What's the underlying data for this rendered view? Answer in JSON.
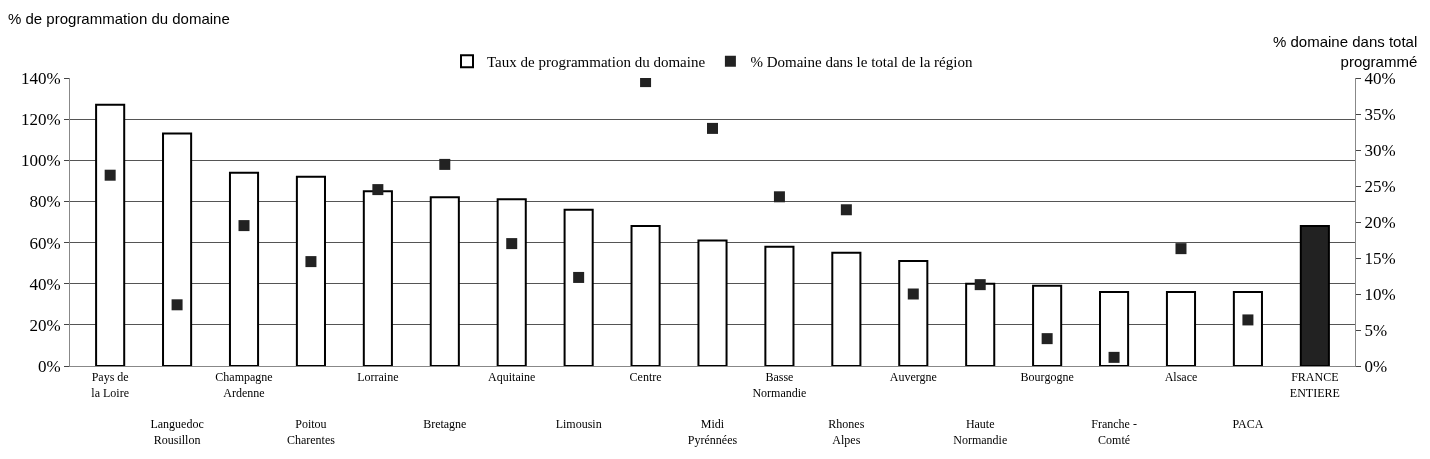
{
  "chart_data": {
    "type": "bar",
    "ylabel": "% de programmation du domaine",
    "y2label": "% domaine dans total\nprogrammé",
    "categories": [
      "Pays de\nla Loire",
      "Languedoc\nRousillon",
      "Champagne\nArdenne",
      "Poitou\nCharentes",
      "Lorraine",
      "Bretagne",
      "Aquitaine",
      "Limousin",
      "Centre",
      "Midi\nPyrénnées",
      "Basse\nNormandie",
      "Rhones\nAlpes",
      "Auvergne",
      "Haute\nNormandie",
      "Bourgogne",
      "Franche -\nComté",
      "Alsace",
      "PACA",
      "FRANCE\nENTIERE"
    ],
    "series": [
      {
        "name": "Taux de programmation du domaine",
        "color": "#ffffff",
        "colors": [
          "#ffffff",
          "#ffffff",
          "#ffffff",
          "#ffffff",
          "#ffffff",
          "#ffffff",
          "#ffffff",
          "#ffffff",
          "#ffffff",
          "#ffffff",
          "#ffffff",
          "#ffffff",
          "#ffffff",
          "#ffffff",
          "#ffffff",
          "#ffffff",
          "#ffffff",
          "#ffffff",
          "#222222"
        ],
        "values": [
          127,
          113,
          94,
          92,
          85,
          82,
          81,
          76,
          68,
          61,
          58,
          55,
          51,
          40,
          39,
          36,
          36,
          36,
          68
        ]
      },
      {
        "name": "% Domaine dans le total de la région",
        "type": "scatter",
        "axis": "y2",
        "color": "#222222",
        "marker": "square",
        "values": [
          26.5,
          8.5,
          19.5,
          14.5,
          24.5,
          28,
          17,
          12.3,
          39.5,
          33,
          23.5,
          21.7,
          10,
          11.3,
          3.8,
          1.2,
          16.3,
          6.4,
          null
        ]
      }
    ],
    "ylim": [
      0,
      140
    ],
    "yticks": [
      {
        "value": 0,
        "label": "0%"
      },
      {
        "value": 20,
        "label": "20%"
      },
      {
        "value": 40,
        "label": "40%"
      },
      {
        "value": 60,
        "label": "60%"
      },
      {
        "value": 80,
        "label": "80%"
      },
      {
        "value": 100,
        "label": "100%"
      },
      {
        "value": 120,
        "label": "120%"
      },
      {
        "value": 140,
        "label": "140%"
      }
    ],
    "y2lim": [
      0,
      40
    ],
    "y2ticks": [
      {
        "value": 0,
        "label": "0%"
      },
      {
        "value": 5,
        "label": "5%"
      },
      {
        "value": 10,
        "label": "10%"
      },
      {
        "value": 15,
        "label": "15%"
      },
      {
        "value": 20,
        "label": "20%"
      },
      {
        "value": 25,
        "label": "25%"
      },
      {
        "value": 30,
        "label": "30%"
      },
      {
        "value": 35,
        "label": "35%"
      },
      {
        "value": 40,
        "label": "40%"
      }
    ],
    "grid": "y",
    "legend": "top"
  }
}
